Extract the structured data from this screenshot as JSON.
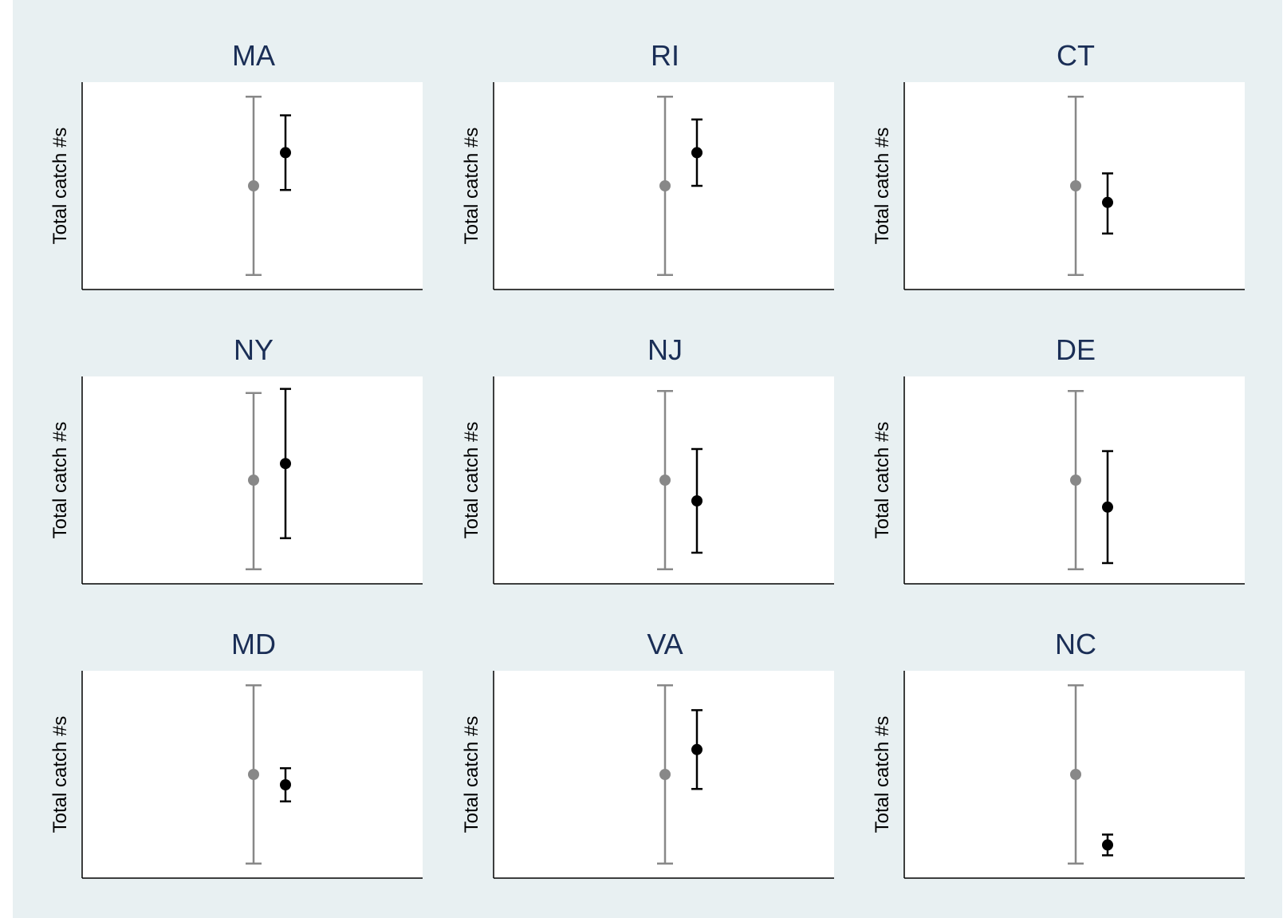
{
  "chart_data": {
    "type": "errorbar-panels",
    "grid": false,
    "ylabel": "Total catch #s",
    "colors": {
      "background": "#e8f0f2",
      "plot_area": "#ffffff",
      "title": "#1a2e56",
      "series_1": "#888888",
      "series_2": "#000000"
    },
    "ylim": [
      0,
      1
    ],
    "panels": [
      {
        "title": "MA",
        "series": [
          {
            "mean": 0.5,
            "lower": 0.07,
            "upper": 0.93
          },
          {
            "mean": 0.66,
            "lower": 0.48,
            "upper": 0.84
          }
        ]
      },
      {
        "title": "RI",
        "series": [
          {
            "mean": 0.5,
            "lower": 0.07,
            "upper": 0.93
          },
          {
            "mean": 0.66,
            "lower": 0.5,
            "upper": 0.82
          }
        ]
      },
      {
        "title": "CT",
        "series": [
          {
            "mean": 0.5,
            "lower": 0.07,
            "upper": 0.93
          },
          {
            "mean": 0.42,
            "lower": 0.27,
            "upper": 0.56
          }
        ]
      },
      {
        "title": "NY",
        "series": [
          {
            "mean": 0.5,
            "lower": 0.07,
            "upper": 0.92
          },
          {
            "mean": 0.58,
            "lower": 0.22,
            "upper": 0.94
          }
        ]
      },
      {
        "title": "NJ",
        "series": [
          {
            "mean": 0.5,
            "lower": 0.07,
            "upper": 0.93
          },
          {
            "mean": 0.4,
            "lower": 0.15,
            "upper": 0.65
          }
        ]
      },
      {
        "title": "DE",
        "series": [
          {
            "mean": 0.5,
            "lower": 0.07,
            "upper": 0.93
          },
          {
            "mean": 0.37,
            "lower": 0.1,
            "upper": 0.64
          }
        ]
      },
      {
        "title": "MD",
        "series": [
          {
            "mean": 0.5,
            "lower": 0.07,
            "upper": 0.93
          },
          {
            "mean": 0.45,
            "lower": 0.37,
            "upper": 0.53
          }
        ]
      },
      {
        "title": "VA",
        "series": [
          {
            "mean": 0.5,
            "lower": 0.07,
            "upper": 0.93
          },
          {
            "mean": 0.62,
            "lower": 0.43,
            "upper": 0.81
          }
        ]
      },
      {
        "title": "NC",
        "series": [
          {
            "mean": 0.5,
            "lower": 0.07,
            "upper": 0.93
          },
          {
            "mean": 0.16,
            "lower": 0.11,
            "upper": 0.21
          }
        ]
      }
    ]
  }
}
